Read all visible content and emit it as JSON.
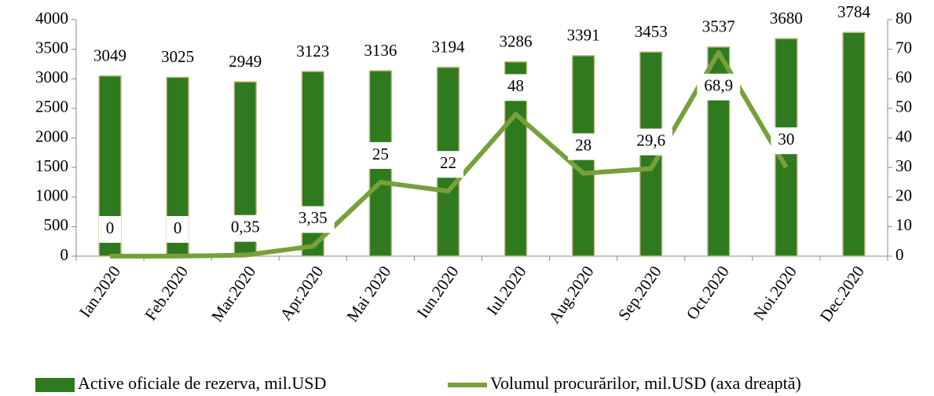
{
  "chart_data": {
    "type": "bar",
    "categories": [
      "Ian.2020",
      "Feb.2020",
      "Mar.2020",
      "Apr.2020",
      "Mai 2020",
      "Iun.2020",
      "Iul.2020",
      "Aug.2020",
      "Sep.2020",
      "Oct.2020",
      "Noi.2020",
      "Dec.2020"
    ],
    "series": [
      {
        "name": "Active oficiale de rezerva, mil.USD",
        "type": "bar",
        "color": "#2f7a1f",
        "values": [
          3049,
          3025,
          2949,
          3123,
          3136,
          3194,
          3286,
          3391,
          3453,
          3537,
          3680,
          3784
        ]
      },
      {
        "name": "Volumul procurărilor, mil.USD (axa dreaptă)",
        "type": "line",
        "axis": "y2",
        "color": "#77a03b",
        "values": [
          0,
          0,
          0.35,
          3.35,
          25,
          22,
          48,
          28,
          29.6,
          68.9,
          30,
          null
        ],
        "value_labels": [
          "0",
          "0",
          "0,35",
          "3,35",
          "25",
          "22",
          "48",
          "28",
          "29,6",
          "68,9",
          "30",
          null
        ]
      }
    ],
    "ylim": [
      0,
      4000
    ],
    "yticks": [
      0,
      500,
      1000,
      1500,
      2000,
      2500,
      3000,
      3500,
      4000
    ],
    "y2lim": [
      0,
      80
    ],
    "y2ticks": [
      0,
      10,
      20,
      30,
      40,
      50,
      60,
      70,
      80
    ],
    "legend": "bottom",
    "grid": false
  }
}
